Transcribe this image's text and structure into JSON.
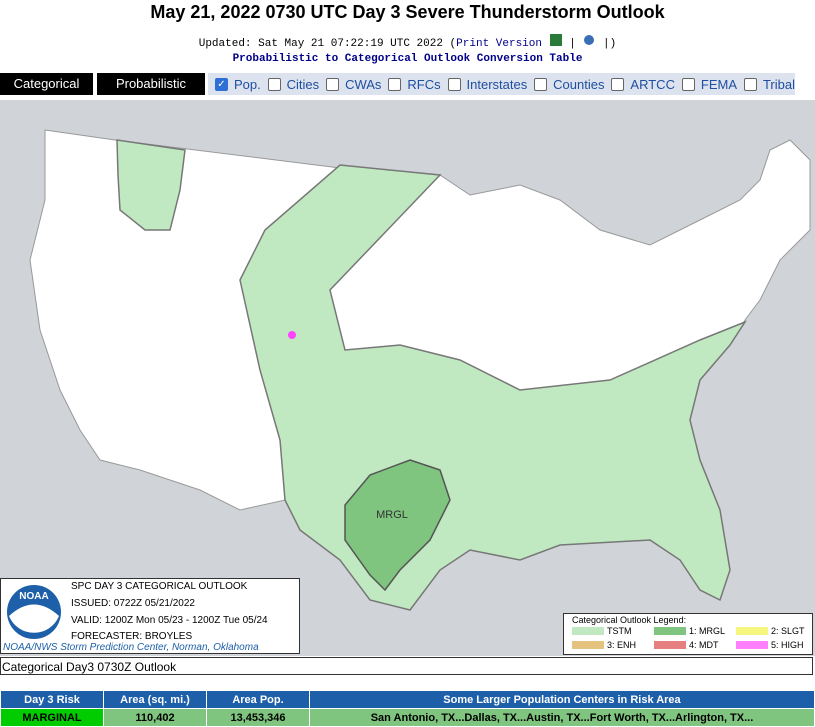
{
  "header": {
    "title": "May 21, 2022 0730 UTC Day 3 Severe Thunderstorm Outlook",
    "updated": [
      "Updated: Sat May 21 07:22:19 UTC 2022 (",
      "Print Version",
      "|",
      "|",
      ")"
    ],
    "conversion_link": "Probabilistic to Categorical Outlook Conversion Table"
  },
  "tabs": [
    "Categorical",
    "Probabilistic"
  ],
  "layers": [
    {
      "label": "Pop.",
      "checked": true
    },
    {
      "label": "Cities",
      "checked": false
    },
    {
      "label": "CWAs",
      "checked": false
    },
    {
      "label": "RFCs",
      "checked": false
    },
    {
      "label": "Interstates",
      "checked": false
    },
    {
      "label": "Counties",
      "checked": false
    },
    {
      "label": "ARTCC",
      "checked": false
    },
    {
      "label": "FEMA",
      "checked": false
    },
    {
      "label": "Tribal",
      "checked": false
    }
  ],
  "map": {
    "risk_label": "MRGL",
    "info": [
      "SPC DAY 3 CATEGORICAL OUTLOOK",
      "ISSUED: 0722Z 05/21/2022",
      "VALID: 1200Z Mon 05/23 - 1200Z Tue 05/24",
      "FORECASTER: BROYLES"
    ],
    "logo": "NOAA",
    "credit": "NOAA/NWS Storm Prediction Center, Norman, Oklahoma",
    "legend": {
      "title": "Categorical Outlook Legend:",
      "items": [
        {
          "label": "TSTM",
          "color": "#c1e9c1"
        },
        {
          "label": "1: MRGL",
          "color": "#7fc57f"
        },
        {
          "label": "2: SLGT",
          "color": "#f6f67f"
        },
        {
          "label": "3: ENH",
          "color": "#e6c27f"
        },
        {
          "label": "4: MDT",
          "color": "#e67f7f"
        },
        {
          "label": "5: HIGH",
          "color": "#ff7fff"
        }
      ]
    }
  },
  "caption": "Categorical Day3 0730Z Outlook",
  "table": {
    "headers": [
      "Day 3 Risk",
      "Area (sq. mi.)",
      "Area Pop.",
      "Some Larger Population Centers in Risk Area"
    ],
    "rows": [
      [
        "MARGINAL",
        "110,402",
        "13,453,346",
        "San Antonio, TX...Dallas, TX...Austin, TX...Fort Worth, TX...Arlington, TX..."
      ]
    ]
  }
}
